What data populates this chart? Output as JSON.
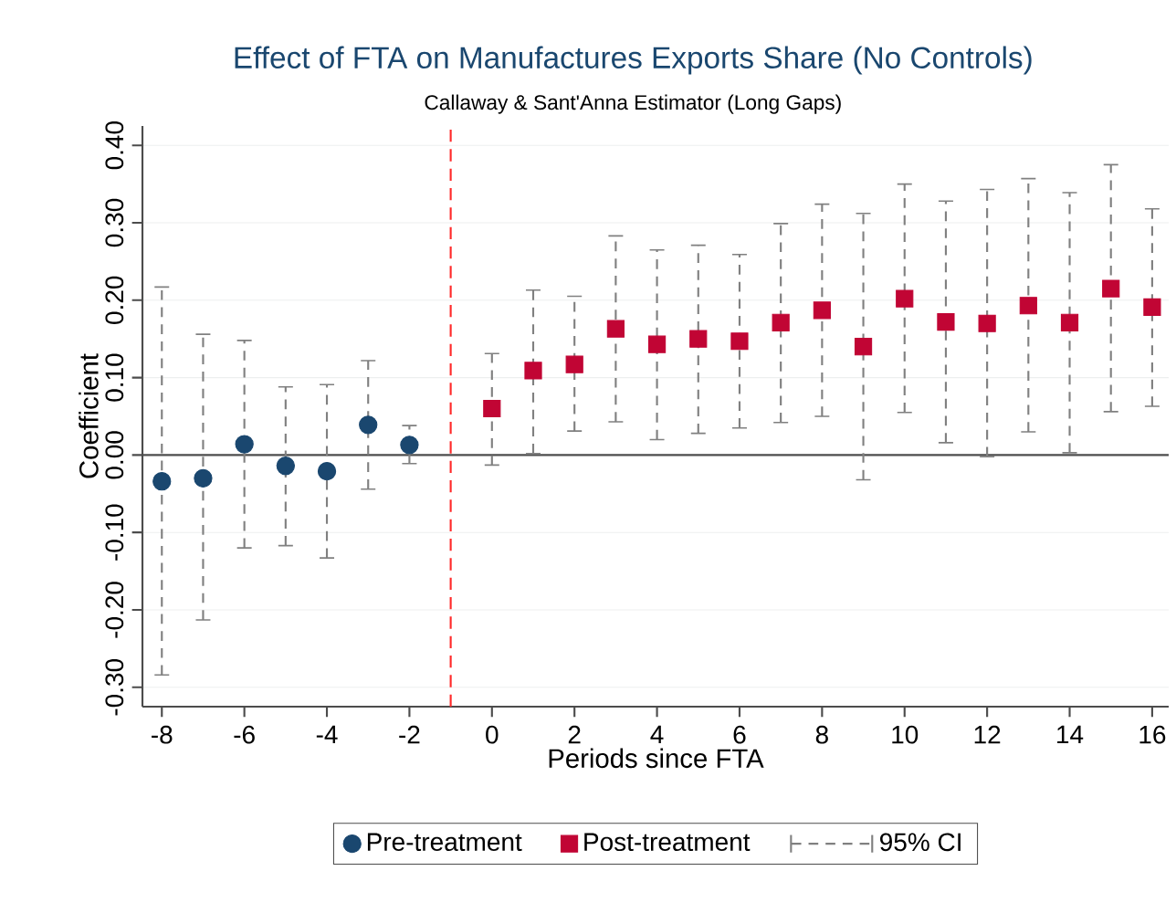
{
  "chart_data": {
    "type": "scatter",
    "title": "Effect of FTA on Manufactures Exports Share (No Controls)",
    "subtitle": "Callaway & Sant'Anna Estimator (Long Gaps)",
    "xlabel": "Periods since FTA",
    "ylabel": "Coefficient",
    "series": [
      {
        "name": "Pre-treatment",
        "color": "#1a476f",
        "marker": "circle",
        "x": [
          -8,
          -7,
          -6,
          -5,
          -4,
          -3,
          -2
        ],
        "values": [
          -0.034,
          -0.03,
          0.014,
          -0.014,
          -0.021,
          0.039,
          0.013
        ],
        "errors": [
          [
            -0.284,
            0.217
          ],
          [
            -0.213,
            0.156
          ],
          [
            -0.12,
            0.148
          ],
          [
            -0.117,
            0.088
          ],
          [
            -0.133,
            0.091
          ],
          [
            -0.044,
            0.122
          ],
          [
            -0.011,
            0.038
          ]
        ]
      },
      {
        "name": "Post-treatment",
        "color": "#c10534",
        "marker": "square",
        "x": [
          0,
          1,
          2,
          3,
          4,
          5,
          6,
          7,
          8,
          9,
          10,
          11,
          12,
          13,
          14,
          15,
          16
        ],
        "values": [
          0.06,
          0.109,
          0.117,
          0.163,
          0.143,
          0.15,
          0.147,
          0.171,
          0.187,
          0.14,
          0.202,
          0.172,
          0.17,
          0.193,
          0.171,
          0.215,
          0.191
        ],
        "errors": [
          [
            -0.013,
            0.131
          ],
          [
            0.002,
            0.213
          ],
          [
            0.031,
            0.205
          ],
          [
            0.043,
            0.283
          ],
          [
            0.02,
            0.265
          ],
          [
            0.028,
            0.271
          ],
          [
            0.035,
            0.259
          ],
          [
            0.042,
            0.299
          ],
          [
            0.05,
            0.324
          ],
          [
            -0.032,
            0.312
          ],
          [
            0.055,
            0.35
          ],
          [
            0.016,
            0.328
          ],
          [
            -0.002,
            0.343
          ],
          [
            0.03,
            0.357
          ],
          [
            0.003,
            0.339
          ],
          [
            0.056,
            0.375
          ],
          [
            0.063,
            0.318
          ]
        ]
      }
    ],
    "annotations": [
      "95% CI"
    ],
    "xlim": [
      -8.47,
      16.4
    ],
    "xticks": [
      -8,
      -6,
      -4,
      -2,
      0,
      2,
      4,
      6,
      8,
      10,
      12,
      14,
      16
    ],
    "ylim": [
      -0.325,
      0.425
    ],
    "yticks": [
      {
        "value": -0.3,
        "label": "-0.30"
      },
      {
        "value": -0.2,
        "label": "-0.20"
      },
      {
        "value": -0.1,
        "label": "-0.10"
      },
      {
        "value": 0,
        "label": "0.00"
      },
      {
        "value": 0.1,
        "label": "0.10"
      },
      {
        "value": 0.2,
        "label": "0.20"
      },
      {
        "value": 0.3,
        "label": "0.30"
      },
      {
        "value": 0.4,
        "label": "0.40"
      }
    ],
    "ref_lines": [
      {
        "axis": "x",
        "value": -1,
        "color": "#ff2a2a",
        "line_style": "dashed"
      },
      {
        "axis": "y",
        "value": 0,
        "color": "#4d4d4d",
        "line_style": "solid"
      }
    ],
    "grid": "y",
    "legend": "bottom"
  }
}
